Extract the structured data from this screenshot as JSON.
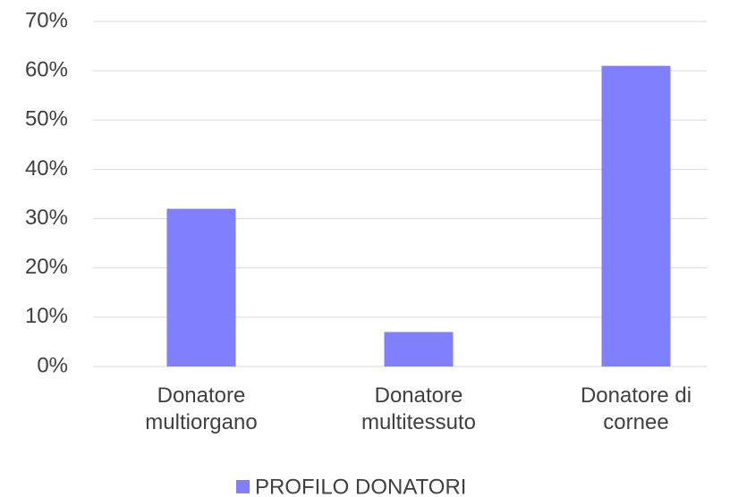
{
  "chart_data": {
    "type": "bar",
    "categories": [
      "Donatore multiorgano",
      "Donatore multitessuto",
      "Donatore di cornee"
    ],
    "series": [
      {
        "name": "PROFILO DONATORI",
        "color": "#8080ff",
        "values": [
          32,
          7,
          61
        ]
      }
    ],
    "ylim": [
      0,
      70
    ],
    "yticks": [
      {
        "value": 0,
        "label": "0%"
      },
      {
        "value": 10,
        "label": "10%"
      },
      {
        "value": 20,
        "label": "20%"
      },
      {
        "value": 30,
        "label": "30%"
      },
      {
        "value": 40,
        "label": "40%"
      },
      {
        "value": 50,
        "label": "50%"
      },
      {
        "value": 60,
        "label": "60%"
      },
      {
        "value": 70,
        "label": "70%"
      }
    ],
    "grid": true,
    "legend": "bottom"
  }
}
